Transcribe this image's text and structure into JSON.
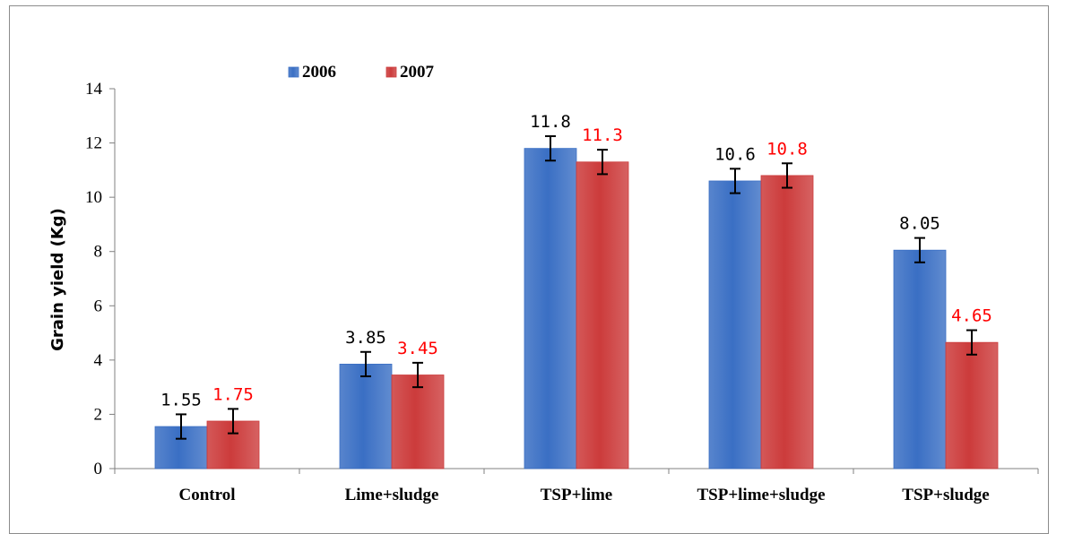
{
  "chart_data": {
    "type": "bar",
    "ylabel": "Grain yield  (Kg)",
    "xlabel": "",
    "ylim": [
      0,
      14
    ],
    "yticks": [
      "0",
      "2",
      "4",
      "6",
      "8",
      "10",
      "12",
      "14"
    ],
    "categories": [
      "Control",
      "Lime+sludge",
      "TSP+lime",
      "TSP+lime+sludge",
      "TSP+sludge"
    ],
    "series": [
      {
        "name": "2006",
        "color": "#3a6fc4",
        "label_color": "#000000",
        "values": [
          1.55,
          3.85,
          11.8,
          10.6,
          8.05
        ],
        "labels": [
          "1.55",
          "3.85",
          "11.8",
          "10.6",
          "8.05"
        ],
        "error": [
          0.45,
          0.45,
          0.45,
          0.45,
          0.45
        ]
      },
      {
        "name": "2007",
        "color": "#cc3b3b",
        "label_color": "#ff0000",
        "values": [
          1.75,
          3.45,
          11.3,
          10.8,
          4.65
        ],
        "labels": [
          "1.75",
          "3.45",
          "11.3",
          "10.8",
          "4.65"
        ],
        "error": [
          0.45,
          0.45,
          0.45,
          0.45,
          0.45
        ]
      }
    ],
    "legend": "top-left",
    "grid": false
  }
}
